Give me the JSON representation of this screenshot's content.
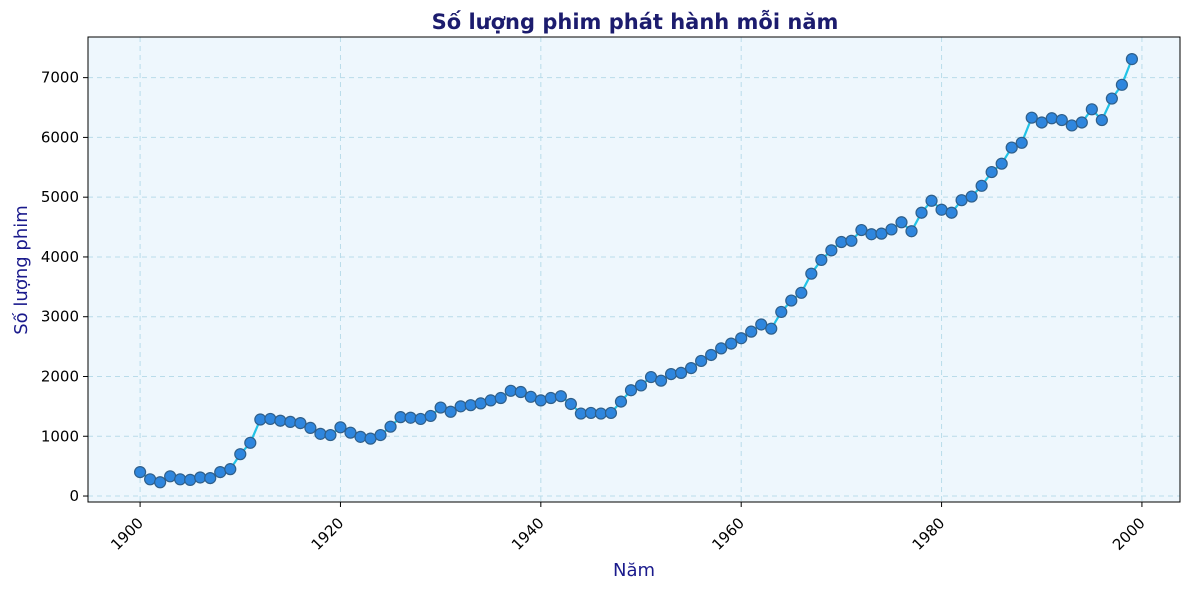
{
  "chart_data": {
    "type": "line",
    "title": "Số lượng phim phát hành mỗi năm",
    "xlabel": "Năm",
    "ylabel": "Số lượng phim",
    "xlim": [
      1894.8,
      2003.8
    ],
    "ylim": [
      -100,
      7680
    ],
    "xticks": [
      1900,
      1920,
      1940,
      1960,
      1980,
      2000
    ],
    "yticks": [
      0,
      1000,
      2000,
      3000,
      4000,
      5000,
      6000,
      7000
    ],
    "grid": true,
    "line_color": "#22c3e6",
    "marker_color": "#2e86de",
    "marker_edge_color": "#2f5f8a",
    "background_color": "#eef7fd",
    "x": [
      1900,
      1901,
      1902,
      1903,
      1904,
      1905,
      1906,
      1907,
      1908,
      1909,
      1910,
      1911,
      1912,
      1913,
      1914,
      1915,
      1916,
      1917,
      1918,
      1919,
      1920,
      1921,
      1922,
      1923,
      1924,
      1925,
      1926,
      1927,
      1928,
      1929,
      1930,
      1931,
      1932,
      1933,
      1934,
      1935,
      1936,
      1937,
      1938,
      1939,
      1940,
      1941,
      1942,
      1943,
      1944,
      1945,
      1946,
      1947,
      1948,
      1949,
      1950,
      1951,
      1952,
      1953,
      1954,
      1955,
      1956,
      1957,
      1958,
      1959,
      1960,
      1961,
      1962,
      1963,
      1964,
      1965,
      1966,
      1967,
      1968,
      1969,
      1970,
      1971,
      1972,
      1973,
      1974,
      1975,
      1976,
      1977,
      1978,
      1979,
      1980,
      1981,
      1982,
      1983,
      1984,
      1985,
      1986,
      1987,
      1988,
      1989,
      1990,
      1991,
      1992,
      1993,
      1994,
      1995,
      1996,
      1997,
      1998,
      1999
    ],
    "y": [
      400,
      280,
      230,
      330,
      280,
      270,
      310,
      300,
      400,
      450,
      700,
      890,
      1280,
      1290,
      1260,
      1240,
      1220,
      1140,
      1040,
      1020,
      1150,
      1060,
      990,
      960,
      1020,
      1160,
      1320,
      1310,
      1290,
      1340,
      1480,
      1410,
      1500,
      1520,
      1550,
      1600,
      1640,
      1760,
      1740,
      1660,
      1600,
      1640,
      1670,
      1540,
      1380,
      1390,
      1380,
      1390,
      1580,
      1770,
      1850,
      1990,
      1930,
      2040,
      2060,
      2140,
      2260,
      2360,
      2470,
      2550,
      2640,
      2750,
      2870,
      2800,
      3080,
      3270,
      3400,
      3720,
      3950,
      4110,
      4250,
      4270,
      4450,
      4380,
      4390,
      4460,
      4580,
      4430,
      4740,
      4940,
      4790,
      4740,
      4950,
      5010,
      5190,
      5420,
      5560,
      5830,
      5910,
      6330,
      6250,
      6320,
      6290,
      6200,
      6250,
      6470,
      6290,
      6650,
      6880,
      7310
    ]
  }
}
